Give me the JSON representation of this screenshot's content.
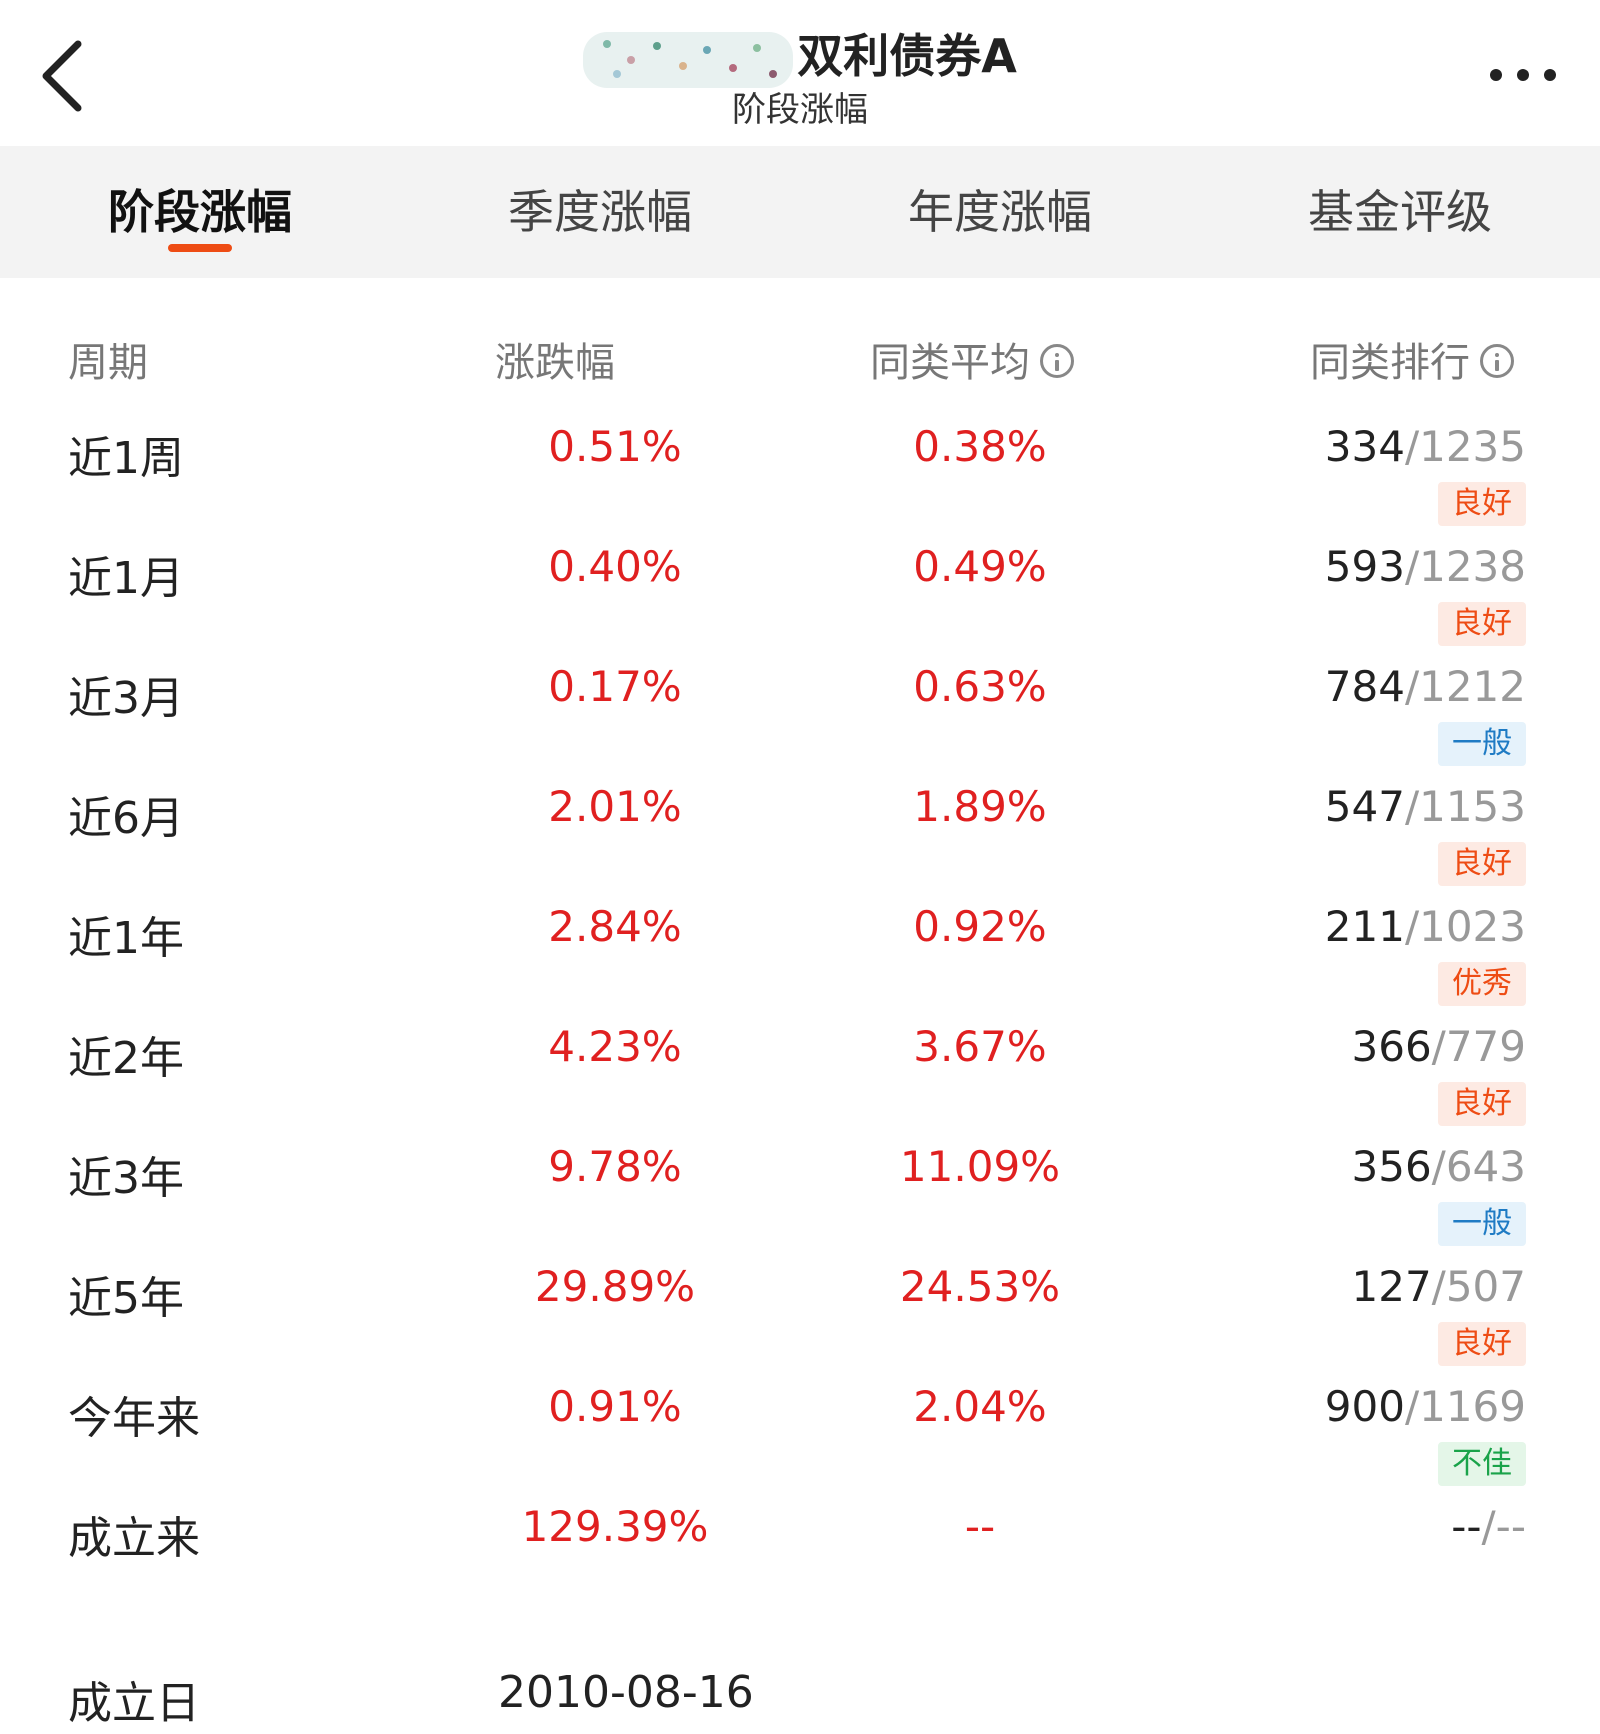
{
  "header": {
    "title": "双利债券A",
    "subtitle": "阶段涨幅"
  },
  "tabs": [
    {
      "label": "阶段涨幅",
      "active": true
    },
    {
      "label": "季度涨幅",
      "active": false
    },
    {
      "label": "年度涨幅",
      "active": false
    },
    {
      "label": "基金评级",
      "active": false
    }
  ],
  "table": {
    "headers": {
      "period": "周期",
      "change": "涨跌幅",
      "avg": "同类平均",
      "rank": "同类排行"
    },
    "rows": [
      {
        "period": "近1周",
        "change": "0.51%",
        "avg": "0.38%",
        "rank": "334",
        "total": "/1235",
        "badge": "良好",
        "badge_type": "good"
      },
      {
        "period": "近1月",
        "change": "0.40%",
        "avg": "0.49%",
        "rank": "593",
        "total": "/1238",
        "badge": "良好",
        "badge_type": "good"
      },
      {
        "period": "近3月",
        "change": "0.17%",
        "avg": "0.63%",
        "rank": "784",
        "total": "/1212",
        "badge": "一般",
        "badge_type": "normal"
      },
      {
        "period": "近6月",
        "change": "2.01%",
        "avg": "1.89%",
        "rank": "547",
        "total": "/1153",
        "badge": "良好",
        "badge_type": "good"
      },
      {
        "period": "近1年",
        "change": "2.84%",
        "avg": "0.92%",
        "rank": "211",
        "total": "/1023",
        "badge": "优秀",
        "badge_type": "excellent"
      },
      {
        "period": "近2年",
        "change": "4.23%",
        "avg": "3.67%",
        "rank": "366",
        "total": "/779",
        "badge": "良好",
        "badge_type": "good"
      },
      {
        "period": "近3年",
        "change": "9.78%",
        "avg": "11.09%",
        "rank": "356",
        "total": "/643",
        "badge": "一般",
        "badge_type": "normal"
      },
      {
        "period": "近5年",
        "change": "29.89%",
        "avg": "24.53%",
        "rank": "127",
        "total": "/507",
        "badge": "良好",
        "badge_type": "good"
      },
      {
        "period": "今年来",
        "change": "0.91%",
        "avg": "2.04%",
        "rank": "900",
        "total": "/1169",
        "badge": "不佳",
        "badge_type": "poor"
      },
      {
        "period": "成立来",
        "change": "129.39%",
        "avg": "--",
        "rank": "--",
        "total": "/--",
        "badge": "",
        "badge_type": ""
      }
    ]
  },
  "founded": {
    "label": "成立日",
    "value": "2010-08-16"
  },
  "colors": {
    "accent": "#ee4c14",
    "up": "#e02020",
    "tab_bg": "#f3f3f3"
  },
  "icons": {
    "back": "chevron-left-icon",
    "more": "more-dots-icon",
    "info": "info-circle-icon"
  }
}
